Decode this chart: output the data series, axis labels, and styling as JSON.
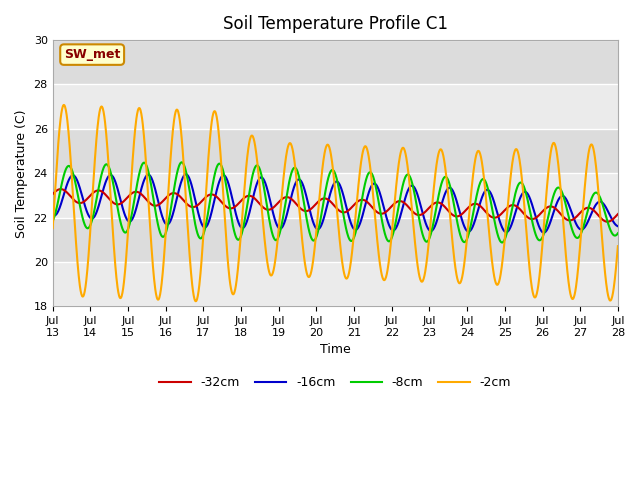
{
  "title": "Soil Temperature Profile C1",
  "xlabel": "Time",
  "ylabel": "Soil Temperature (C)",
  "ylim": [
    18,
    30
  ],
  "yticks": [
    18,
    20,
    22,
    24,
    26,
    28,
    30
  ],
  "xtick_labels": [
    "Jul\n13",
    "Jul\n14",
    "Jul\n15",
    "Jul\n16",
    "Jul\n17",
    "Jul\n18",
    "Jul\n19",
    "Jul\n20",
    "Jul\n21",
    "Jul\n22",
    "Jul\n23",
    "Jul\n24",
    "Jul\n25",
    "Jul\n26",
    "Jul\n27",
    "Jul\n28"
  ],
  "annotation_text": "SW_met",
  "annotation_bg": "#ffffcc",
  "annotation_border": "#cc8800",
  "annotation_text_color": "#880000",
  "colors": {
    "-32cm": "#cc0000",
    "-16cm": "#0000cc",
    "-8cm": "#00cc00",
    "-2cm": "#ffaa00"
  },
  "plot_bg_light": "#ebebeb",
  "plot_bg_dark": "#dcdcdc",
  "fig_bg": "#ffffff",
  "grid_color": "#ffffff",
  "linewidth": 1.5
}
